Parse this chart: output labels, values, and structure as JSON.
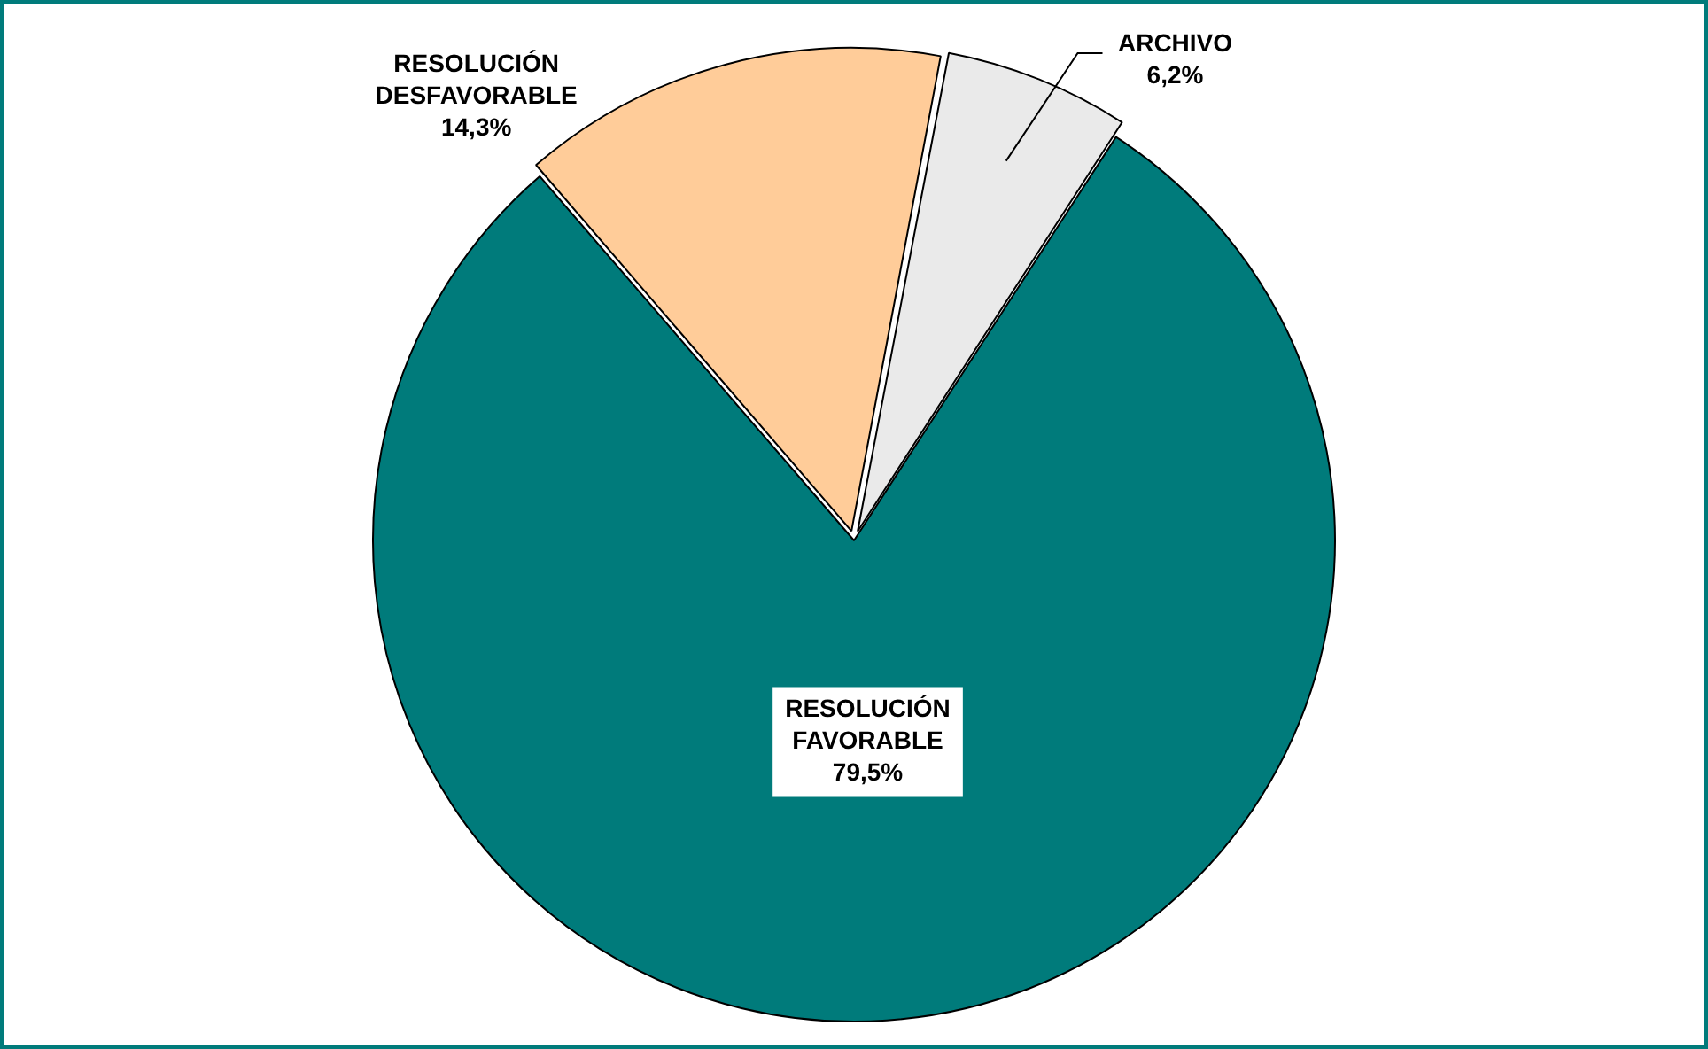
{
  "chart_data": {
    "type": "pie",
    "categories": [
      "RESOLUCIÓN FAVORABLE",
      "RESOLUCIÓN DESFAVORABLE",
      "ARCHIVO"
    ],
    "values": [
      79.5,
      14.3,
      6.2
    ],
    "colors": [
      "#007b7b",
      "#ffcc99",
      "#eaeaea"
    ],
    "value_labels": [
      "79,5%",
      "14,3%",
      "6,2%"
    ],
    "legend": false
  }
}
